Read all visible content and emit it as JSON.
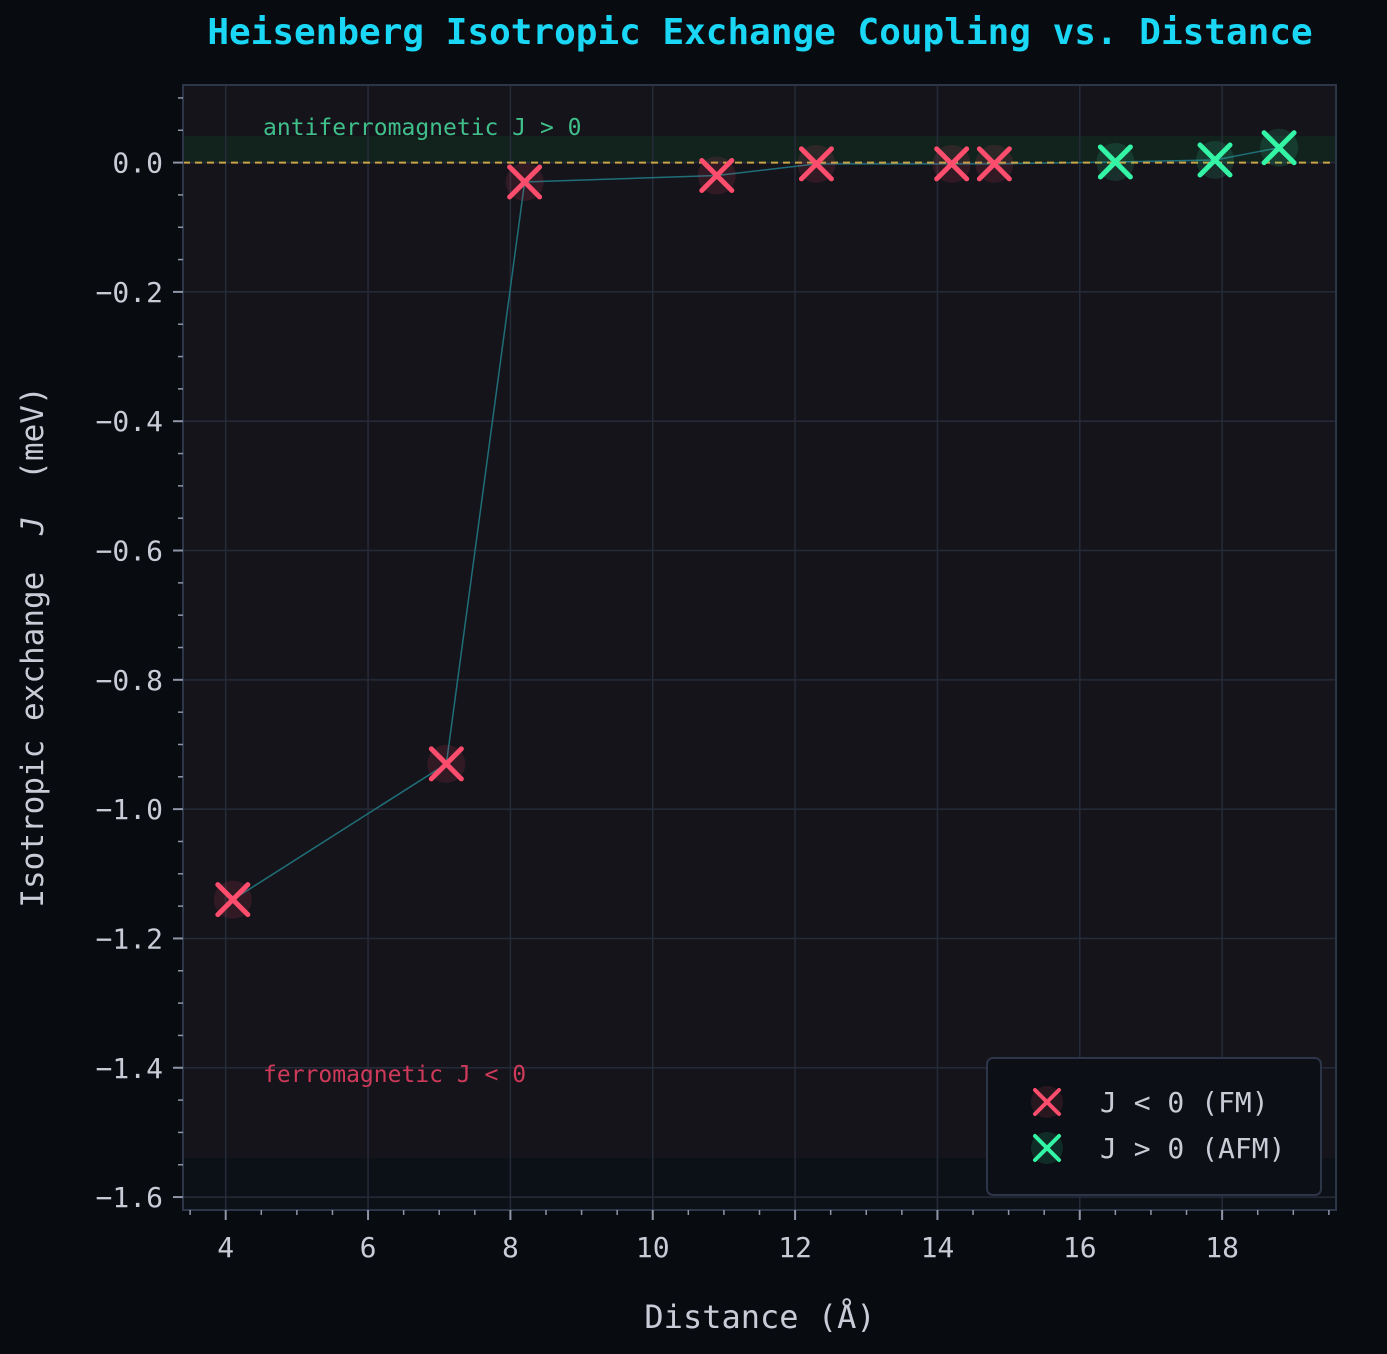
{
  "chart_data": {
    "type": "scatter",
    "title": "Heisenberg Isotropic Exchange Coupling vs. Distance",
    "xlabel": "Distance  (Å)",
    "ylabel_parts": [
      "Isotropic exchange",
      "J",
      "(meV)"
    ],
    "xlim": [
      3.4,
      19.6
    ],
    "ylim": [
      -1.62,
      0.12
    ],
    "x_ticks": [
      4,
      6,
      8,
      10,
      12,
      14,
      16,
      18
    ],
    "y_ticks": [
      0.0,
      -0.2,
      -0.4,
      -0.6,
      -0.8,
      -1.0,
      -1.2,
      -1.4,
      -1.6
    ],
    "y_tick_labels": [
      "0.0",
      "−0.2",
      "−0.4",
      "−0.6",
      "−0.8",
      "−1.0",
      "−1.2",
      "−1.4",
      "−1.6"
    ],
    "x_tick_labels": [
      "4",
      "6",
      "8",
      "10",
      "12",
      "14",
      "16",
      "18"
    ],
    "grid": true,
    "reference_line_y": 0.0,
    "annotations": {
      "afm": "antiferromagnetic  J > 0",
      "fm": "ferromagnetic  J < 0"
    },
    "legend_position": "bottom-right",
    "series": [
      {
        "name": "J < 0  (FM)",
        "color": "#ff4d6d",
        "points": [
          {
            "x": 4.1,
            "y": -1.14
          },
          {
            "x": 7.1,
            "y": -0.93
          },
          {
            "x": 8.2,
            "y": -0.03
          },
          {
            "x": 10.9,
            "y": -0.02
          },
          {
            "x": 12.3,
            "y": -0.002
          },
          {
            "x": 14.2,
            "y": -0.002
          },
          {
            "x": 14.8,
            "y": -0.002
          }
        ]
      },
      {
        "name": "J > 0  (AFM)",
        "color": "#33f5a5",
        "points": [
          {
            "x": 16.5,
            "y": 0.001
          },
          {
            "x": 17.9,
            "y": 0.004
          },
          {
            "x": 18.8,
            "y": 0.023
          }
        ]
      }
    ],
    "colors": {
      "title": "#1ad7f5",
      "text": "#c9ccd6",
      "connector": "#1f6e78",
      "zero_line": "#c9a545",
      "afm_label": "#3fbf8a",
      "fm_label": "#d03a5a"
    }
  }
}
